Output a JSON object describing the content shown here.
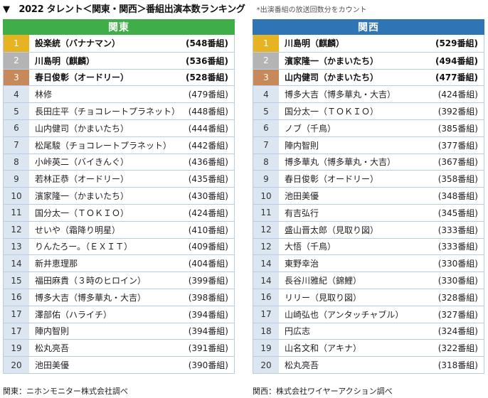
{
  "header": {
    "title": "▼　2022 タレント＜関東・関西＞番組出演本数ランキング",
    "note": "*出演番組の放送回数分をカウント"
  },
  "colors": {
    "kanto_band": "#3fae49",
    "kansai_band": "#2f75b5",
    "rank1": "#e6b422",
    "rank2": "#b4b4b4",
    "rank3": "#c8895a",
    "rank_rest": "#dce6f1"
  },
  "kanto": {
    "label": "関東",
    "rows": [
      {
        "rank": "1",
        "name": "設楽統（バナナマン）",
        "count": "(548番組)"
      },
      {
        "rank": "2",
        "name": "川島明（麒麟）",
        "count": "(536番組)"
      },
      {
        "rank": "3",
        "name": "春日俊彰（オードリー）",
        "count": "(528番組)"
      },
      {
        "rank": "4",
        "name": "林修",
        "count": "(479番組)"
      },
      {
        "rank": "5",
        "name": "長田庄平（チョコレートプラネット）",
        "count": "(448番組)"
      },
      {
        "rank": "6",
        "name": "山内健司（かまいたち）",
        "count": "(444番組)"
      },
      {
        "rank": "7",
        "name": "松尾駿（チョコレートプラネット）",
        "count": "(442番組)"
      },
      {
        "rank": "8",
        "name": "小峠英二（バイきんぐ）",
        "count": "(436番組)"
      },
      {
        "rank": "9",
        "name": "若林正恭（オードリー）",
        "count": "(435番組)"
      },
      {
        "rank": "10",
        "name": "濱家隆一（かまいたち）",
        "count": "(430番組)"
      },
      {
        "rank": "11",
        "name": "国分太一（ＴＯＫＩＯ）",
        "count": "(424番組)"
      },
      {
        "rank": "12",
        "name": "せいや（霜降り明星）",
        "count": "(410番組)"
      },
      {
        "rank": "13",
        "name": "りんたろー。（ＥＸＩＴ）",
        "count": "(409番組)"
      },
      {
        "rank": "14",
        "name": "新井恵理那",
        "count": "(404番組)"
      },
      {
        "rank": "15",
        "name": "福田麻貴（３時のヒロイン）",
        "count": "(399番組)"
      },
      {
        "rank": "16",
        "name": "博多大吉（博多華丸・大吉）",
        "count": "(398番組)"
      },
      {
        "rank": "17",
        "name": "澤部佑（ハライチ）",
        "count": "(394番組)"
      },
      {
        "rank": "17",
        "name": "陣内智則",
        "count": "(394番組)"
      },
      {
        "rank": "19",
        "name": "松丸亮吾",
        "count": "(391番組)"
      },
      {
        "rank": "20",
        "name": "池田美優",
        "count": "(390番組)"
      }
    ]
  },
  "kansai": {
    "label": "関西",
    "rows": [
      {
        "rank": "1",
        "name": "川島明（麒麟）",
        "count": "(529番組)"
      },
      {
        "rank": "2",
        "name": "濱家隆一（かまいたち）",
        "count": "(494番組)"
      },
      {
        "rank": "3",
        "name": "山内健司（かまいたち）",
        "count": "(477番組)"
      },
      {
        "rank": "4",
        "name": "博多大吉（博多華丸・大吉）",
        "count": "(424番組)"
      },
      {
        "rank": "5",
        "name": "国分太一（ＴＯＫＩＯ）",
        "count": "(392番組)"
      },
      {
        "rank": "6",
        "name": "ノブ（千鳥）",
        "count": "(385番組)"
      },
      {
        "rank": "7",
        "name": "陣内智則",
        "count": "(377番組)"
      },
      {
        "rank": "8",
        "name": "博多華丸（博多華丸・大吉）",
        "count": "(367番組)"
      },
      {
        "rank": "9",
        "name": "春日俊彰（オードリー）",
        "count": "(358番組)"
      },
      {
        "rank": "10",
        "name": "池田美優",
        "count": "(348番組)"
      },
      {
        "rank": "11",
        "name": "有吉弘行",
        "count": "(345番組)"
      },
      {
        "rank": "12",
        "name": "盛山晋太郎（見取り図）",
        "count": "(333番組)"
      },
      {
        "rank": "12",
        "name": "大悟（千鳥）",
        "count": "(333番組)"
      },
      {
        "rank": "14",
        "name": "東野幸治",
        "count": "(330番組)"
      },
      {
        "rank": "14",
        "name": "長谷川雅紀（錦鯉）",
        "count": "(330番組)"
      },
      {
        "rank": "16",
        "name": "リリー（見取り図）",
        "count": "(328番組)"
      },
      {
        "rank": "17",
        "name": "山崎弘也（アンタッチャブル）",
        "count": "(327番組)"
      },
      {
        "rank": "18",
        "name": "円広志",
        "count": "(324番組)"
      },
      {
        "rank": "19",
        "name": "山名文和（アキナ）",
        "count": "(322番組)"
      },
      {
        "rank": "20",
        "name": "松丸亮吾",
        "count": "(318番組)"
      }
    ]
  },
  "footer": {
    "kanto_source": "関東：ニホンモニター株式会社調べ",
    "kansai_source": "関西：株式会社ワイヤーアクション調べ"
  }
}
